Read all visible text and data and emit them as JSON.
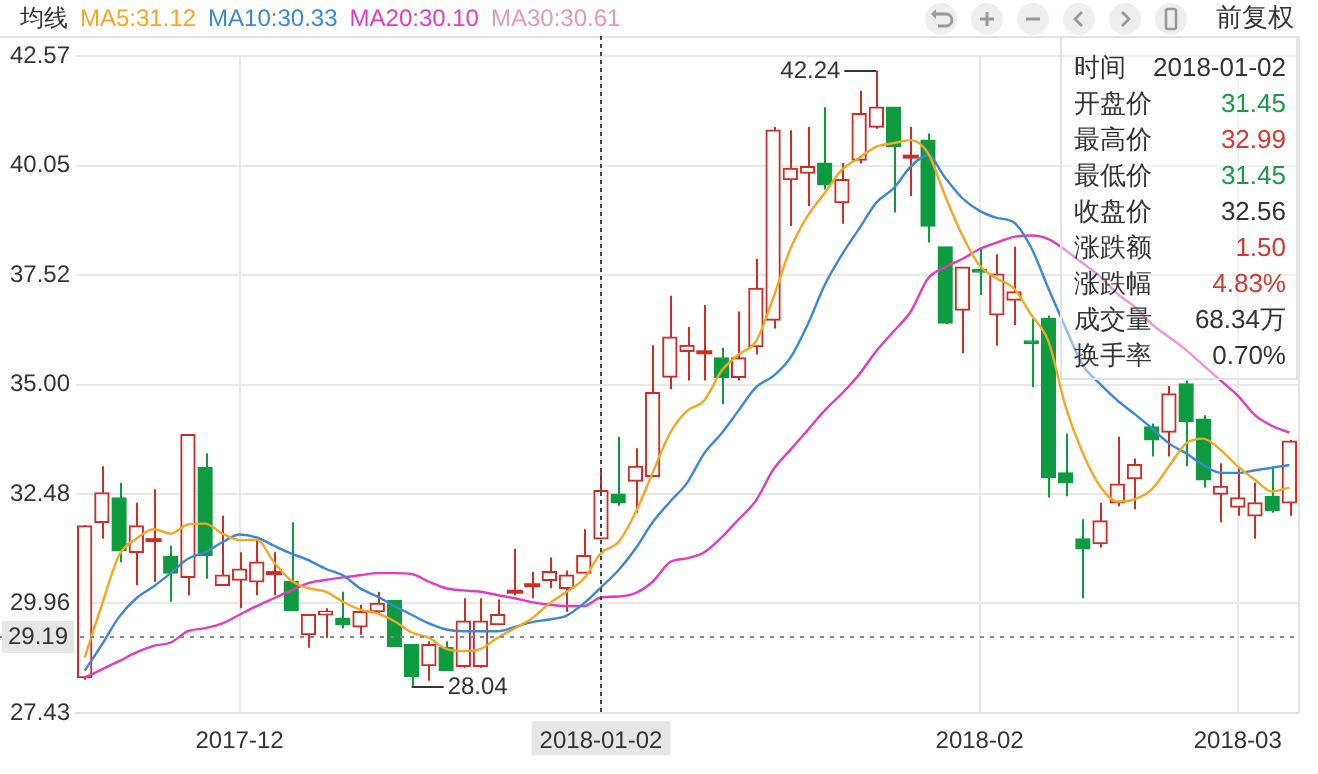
{
  "chart_data": [
    {
      "type": "candlestick",
      "legend_title": "均线",
      "legend": "top left",
      "grid": true,
      "ylim": [
        27.43,
        42.57
      ],
      "yticks": [
        {
          "value": 27.43,
          "label": "27.43"
        },
        {
          "value": 29.96,
          "label": "29.96"
        },
        {
          "value": 32.48,
          "label": "32.48"
        },
        {
          "value": 35,
          "label": "35.00"
        },
        {
          "value": 37.52,
          "label": "37.52"
        },
        {
          "value": 40.05,
          "label": "40.05"
        },
        {
          "value": 42.57,
          "label": "42.57"
        }
      ],
      "categories": [
        null,
        null,
        null,
        null,
        null,
        null,
        null,
        null,
        null,
        "2017-12",
        null,
        null,
        null,
        null,
        null,
        null,
        null,
        null,
        null,
        null,
        null,
        null,
        null,
        null,
        null,
        null,
        null,
        null,
        null,
        null,
        "2018-01-02",
        null,
        null,
        null,
        null,
        null,
        null,
        null,
        null,
        null,
        null,
        null,
        null,
        null,
        null,
        null,
        null,
        null,
        null,
        null,
        null,
        null,
        "2018-02",
        null,
        null,
        null,
        null,
        null,
        null,
        null,
        null,
        null,
        null,
        null,
        null,
        null,
        null,
        "2018-03",
        null,
        null,
        null
      ],
      "ohlc": [
        [
          28.25,
          31.76,
          28.2,
          31.75
        ],
        [
          31.83,
          33.12,
          31.45,
          32.51
        ],
        [
          32.39,
          32.74,
          30.91,
          31.17
        ],
        [
          31.14,
          32.28,
          30.38,
          31.75
        ],
        [
          31.42,
          32.59,
          30.46,
          31.42
        ],
        [
          31.04,
          31.29,
          30.0,
          30.66
        ],
        [
          30.56,
          33.85,
          30.15,
          33.85
        ],
        [
          33.09,
          33.42,
          30.53,
          31.07
        ],
        [
          30.38,
          31.98,
          30.38,
          30.61
        ],
        [
          30.5,
          31.14,
          29.85,
          30.75
        ],
        [
          30.46,
          31.45,
          30.15,
          30.91
        ],
        [
          30.66,
          31.14,
          30.15,
          30.66
        ],
        [
          30.46,
          31.83,
          29.8,
          29.8
        ],
        [
          29.24,
          29.7,
          28.94,
          29.7
        ],
        [
          29.7,
          29.85,
          29.17,
          29.78
        ],
        [
          29.62,
          30.23,
          29.39,
          29.47
        ],
        [
          29.42,
          29.93,
          29.24,
          29.77
        ],
        [
          29.77,
          30.23,
          29.7,
          29.96
        ],
        [
          30.03,
          30.03,
          28.97,
          28.97
        ],
        [
          29.01,
          29.01,
          28.04,
          28.28
        ],
        [
          28.53,
          29.09,
          28.18,
          29.01
        ],
        [
          28.94,
          29.09,
          28.41,
          28.41
        ],
        [
          28.51,
          30.08,
          28.48,
          29.55
        ],
        [
          28.51,
          30.08,
          28.48,
          29.55
        ],
        [
          29.47,
          30.05,
          29.47,
          29.7
        ],
        [
          30.23,
          31.22,
          30.15,
          30.23
        ],
        [
          30.38,
          30.69,
          30.08,
          30.38
        ],
        [
          30.49,
          31.02,
          30.31,
          30.69
        ],
        [
          30.31,
          30.72,
          29.77,
          30.61
        ],
        [
          30.66,
          31.67,
          30.66,
          31.06
        ],
        [
          31.45,
          32.99,
          31.45,
          32.56
        ],
        [
          32.48,
          33.8,
          32.21,
          32.28
        ],
        [
          32.78,
          33.54,
          32.05,
          33.12
        ],
        [
          32.89,
          35.91,
          32.89,
          34.82
        ],
        [
          35.18,
          37.05,
          34.9,
          36.1
        ],
        [
          35.77,
          36.33,
          35.1,
          35.91
        ],
        [
          35.75,
          36.84,
          35.1,
          35.75
        ],
        [
          35.62,
          35.85,
          34.55,
          35.17
        ],
        [
          35.17,
          36.69,
          35.1,
          35.62
        ],
        [
          35.88,
          37.9,
          35.7,
          37.22
        ],
        [
          36.49,
          40.94,
          36.3,
          40.87
        ],
        [
          39.73,
          40.87,
          38.66,
          39.99
        ],
        [
          39.88,
          40.94,
          39.12,
          40.03
        ],
        [
          40.11,
          41.4,
          39.5,
          39.62
        ],
        [
          39.2,
          40.11,
          38.71,
          39.73
        ],
        [
          40.18,
          41.78,
          40.1,
          41.25
        ],
        [
          40.94,
          42.24,
          40.9,
          41.4
        ],
        [
          41.4,
          41.4,
          38.97,
          40.49
        ],
        [
          40.26,
          40.94,
          39.35,
          40.26
        ],
        [
          40.64,
          40.79,
          38.28,
          38.66
        ],
        [
          38.18,
          38.18,
          36.4,
          36.42
        ],
        [
          36.72,
          37.71,
          35.73,
          37.71
        ],
        [
          37.66,
          38.13,
          37.07,
          37.6
        ],
        [
          36.61,
          38.01,
          35.9,
          37.55
        ],
        [
          36.95,
          38.18,
          36.38,
          37.14
        ],
        [
          36.01,
          36.53,
          34.95,
          35.95
        ],
        [
          36.53,
          36.6,
          32.4,
          32.86
        ],
        [
          32.97,
          33.88,
          32.43,
          32.74
        ],
        [
          31.45,
          31.9,
          30.08,
          31.22
        ],
        [
          31.34,
          32.28,
          31.25,
          31.86
        ],
        [
          32.28,
          33.8,
          32.2,
          32.71
        ],
        [
          32.84,
          33.3,
          32.13,
          33.16
        ],
        [
          34.03,
          34.11,
          33.35,
          33.73
        ],
        [
          33.91,
          34.97,
          33.35,
          34.79
        ],
        [
          35.02,
          35.1,
          33.12,
          34.15
        ],
        [
          34.21,
          34.3,
          32.63,
          32.81
        ],
        [
          32.48,
          33.19,
          31.83,
          32.66
        ],
        [
          32.18,
          33.09,
          31.98,
          32.39
        ],
        [
          31.98,
          32.74,
          31.45,
          32.28
        ],
        [
          32.43,
          33.12,
          32.05,
          32.1
        ],
        [
          32.28,
          33.73,
          31.98,
          33.7
        ]
      ],
      "series": [
        {
          "name": "MA5:31.12",
          "type": "line",
          "color": "#f5a623",
          "values": [
            28.71,
            29.93,
            31.07,
            31.45,
            31.67,
            31.57,
            31.78,
            31.8,
            31.57,
            31.42,
            31.43,
            30.91,
            30.49,
            30.31,
            30.23,
            30.0,
            29.82,
            29.73,
            29.55,
            29.29,
            29.17,
            28.91,
            28.86,
            28.91,
            29.17,
            29.39,
            29.62,
            29.96,
            30.23,
            30.53,
            31.12,
            31.37,
            32.05,
            32.97,
            33.88,
            34.4,
            34.64,
            35.32,
            35.7,
            36.0,
            36.99,
            38.13,
            38.89,
            39.42,
            39.96,
            40.23,
            40.49,
            40.57,
            40.64,
            40.34,
            39.35,
            38.44,
            37.75,
            37.45,
            37.22,
            36.61,
            36.0,
            34.49,
            33.42,
            32.66,
            32.31,
            32.36,
            32.59,
            33.12,
            33.65,
            33.76,
            33.5,
            33.12,
            32.81,
            32.54,
            32.63
          ]
        },
        {
          "name": "MA10:30.33",
          "type": "line",
          "color": "#3b87d6",
          "values": [
            28.41,
            29.01,
            29.65,
            30.08,
            30.35,
            30.66,
            30.99,
            31.14,
            31.37,
            31.55,
            31.48,
            31.29,
            31.11,
            30.96,
            30.76,
            30.61,
            30.31,
            30.12,
            29.9,
            29.7,
            29.5,
            29.36,
            29.32,
            29.32,
            29.32,
            29.42,
            29.53,
            29.59,
            29.68,
            29.96,
            30.33,
            30.72,
            31.22,
            31.83,
            32.3,
            32.74,
            33.42,
            33.88,
            34.41,
            34.94,
            35.2,
            35.62,
            36.38,
            37.3,
            38.0,
            38.6,
            39.2,
            39.53,
            40.03,
            40.29,
            39.77,
            39.3,
            39.01,
            38.85,
            38.74,
            38.16,
            37.22,
            36.31,
            35.45,
            35.02,
            34.64,
            34.33,
            34.0,
            33.65,
            33.42,
            33.15,
            32.97,
            32.97,
            33.03,
            33.09,
            33.15
          ]
        },
        {
          "name": "MA20:30.10",
          "type": "line",
          "color": "#e03cc0",
          "values": [
            28.25,
            28.44,
            28.63,
            28.83,
            28.98,
            29.06,
            29.32,
            29.39,
            29.5,
            29.7,
            29.9,
            30.08,
            30.26,
            30.43,
            30.5,
            30.56,
            30.61,
            30.66,
            30.66,
            30.64,
            30.46,
            30.31,
            30.26,
            30.23,
            30.15,
            30.08,
            29.99,
            29.93,
            29.9,
            29.9,
            30.1,
            30.12,
            30.2,
            30.46,
            30.91,
            31.0,
            31.14,
            31.48,
            31.9,
            32.33,
            33.04,
            33.5,
            33.95,
            34.41,
            34.8,
            35.24,
            35.78,
            36.23,
            36.69,
            37.45,
            37.71,
            37.9,
            38.13,
            38.28,
            38.41,
            38.44,
            38.36,
            38.1,
            37.8,
            37.5,
            37.1,
            36.8,
            36.4,
            36.1,
            35.8,
            35.45,
            35.1,
            34.75,
            34.3,
            34.05,
            33.9
          ]
        },
        {
          "name": "MA30:30.61",
          "type": "line",
          "color": "#e49aae",
          "values": [
            null,
            null,
            null,
            null,
            null,
            null,
            null,
            null,
            null,
            null,
            null,
            null,
            null,
            null,
            null,
            null,
            null,
            null,
            null,
            null,
            null,
            null,
            null,
            null,
            null,
            null,
            null,
            null,
            null,
            null,
            null,
            null,
            null,
            null,
            null,
            null,
            null,
            null,
            null,
            null,
            null,
            null,
            null,
            null,
            null,
            null,
            null,
            null,
            null,
            null,
            null,
            null,
            null,
            null,
            null,
            null,
            null,
            null,
            null,
            null,
            null,
            null,
            null,
            null,
            null,
            null,
            null,
            null,
            null,
            null,
            null
          ]
        }
      ],
      "ref_lines": [
        {
          "axis": "y",
          "value": 29.19,
          "label": "29.19"
        },
        {
          "axis": "x",
          "value": "2018-01-02",
          "label": null
        }
      ],
      "annotations": [
        "42.24",
        "28.04",
        "前复权"
      ]
    },
    {
      "type": "other",
      "annotations": [
        "时间",
        "2018-01-02",
        "开盘价",
        "31.45",
        "最高价",
        "32.99",
        "最低价",
        "31.45",
        "收盘价",
        "32.56",
        "涨跌额",
        "1.50",
        "涨跌幅",
        "4.83%",
        "成交量",
        "68.34万",
        "换手率",
        "0.70%"
      ]
    }
  ]
}
